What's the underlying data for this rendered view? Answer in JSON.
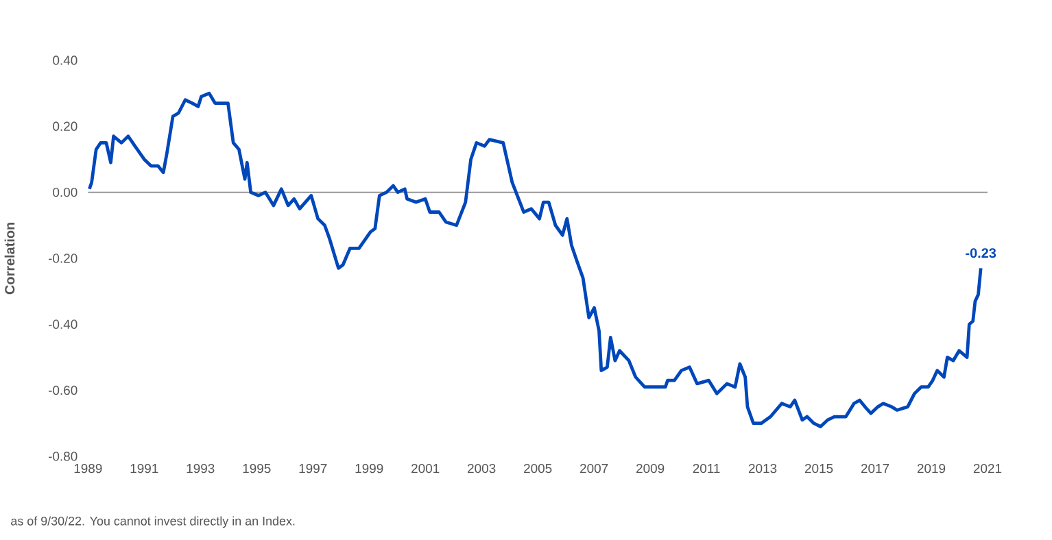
{
  "chart_data": {
    "type": "line",
    "ylabel": "Correlation",
    "x": [
      1989.05,
      1989.13,
      1989.29,
      1989.45,
      1989.65,
      1989.81,
      1989.91,
      1990.19,
      1990.43,
      1990.67,
      1991.0,
      1991.24,
      1991.49,
      1991.68,
      1991.81,
      1992.02,
      1992.22,
      1992.46,
      1992.71,
      1992.92,
      1993.03,
      1993.31,
      1993.52,
      1993.76,
      1993.98,
      1994.17,
      1994.37,
      1994.58,
      1994.66,
      1994.79,
      1995.07,
      1995.31,
      1995.6,
      1995.88,
      1996.12,
      1996.33,
      1996.53,
      1996.94,
      1997.18,
      1997.42,
      1997.59,
      1997.91,
      1998.07,
      1998.32,
      1998.64,
      1999.05,
      1999.21,
      1999.37,
      1999.62,
      1999.86,
      2000.02,
      2000.27,
      2000.35,
      2000.67,
      2001.0,
      2001.16,
      2001.49,
      2001.73,
      2002.11,
      2002.43,
      2002.62,
      2002.82,
      2003.11,
      2003.28,
      2003.77,
      2004.09,
      2004.5,
      2004.77,
      2005.06,
      2005.2,
      2005.39,
      2005.63,
      2005.88,
      2006.04,
      2006.2,
      2006.4,
      2006.61,
      2006.82,
      2007.01,
      2007.18,
      2007.26,
      2007.47,
      2007.59,
      2007.75,
      2007.91,
      2008.24,
      2008.48,
      2008.8,
      2009.13,
      2009.54,
      2009.62,
      2009.86,
      2010.11,
      2010.4,
      2010.67,
      2011.08,
      2011.37,
      2011.73,
      2012.02,
      2012.19,
      2012.38,
      2012.46,
      2012.67,
      2012.95,
      2013.28,
      2013.68,
      2013.98,
      2014.14,
      2014.41,
      2014.58,
      2014.82,
      2015.06,
      2015.31,
      2015.55,
      2015.96,
      2016.25,
      2016.45,
      2016.64,
      2016.85,
      2017.1,
      2017.29,
      2017.59,
      2017.78,
      2018.16,
      2018.4,
      2018.64,
      2018.89,
      2019.05,
      2019.21,
      2019.45,
      2019.57,
      2019.78,
      2019.99,
      2020.27,
      2020.35,
      2020.48,
      2020.56,
      2020.67,
      2020.76
    ],
    "series": [
      {
        "color": "#0047bb",
        "values": [
          0.01,
          0.03,
          0.13,
          0.15,
          0.15,
          0.09,
          0.17,
          0.15,
          0.17,
          0.14,
          0.1,
          0.08,
          0.08,
          0.06,
          0.12,
          0.23,
          0.24,
          0.28,
          0.27,
          0.26,
          0.29,
          0.3,
          0.27,
          0.27,
          0.27,
          0.15,
          0.13,
          0.04,
          0.09,
          0.0,
          -0.01,
          0.0,
          -0.04,
          0.01,
          -0.04,
          -0.02,
          -0.05,
          -0.01,
          -0.08,
          -0.1,
          -0.14,
          -0.23,
          -0.22,
          -0.17,
          -0.17,
          -0.12,
          -0.11,
          -0.01,
          0.0,
          0.02,
          0.0,
          0.01,
          -0.02,
          -0.03,
          -0.02,
          -0.06,
          -0.06,
          -0.09,
          -0.1,
          -0.03,
          0.1,
          0.15,
          0.14,
          0.16,
          0.15,
          0.03,
          -0.06,
          -0.05,
          -0.08,
          -0.03,
          -0.03,
          -0.1,
          -0.13,
          -0.08,
          -0.16,
          -0.21,
          -0.26,
          -0.38,
          -0.35,
          -0.42,
          -0.54,
          -0.53,
          -0.44,
          -0.51,
          -0.48,
          -0.51,
          -0.56,
          -0.59,
          -0.59,
          -0.59,
          -0.57,
          -0.57,
          -0.54,
          -0.53,
          -0.58,
          -0.57,
          -0.61,
          -0.58,
          -0.59,
          -0.52,
          -0.56,
          -0.65,
          -0.7,
          -0.7,
          -0.68,
          -0.64,
          -0.65,
          -0.63,
          -0.69,
          -0.68,
          -0.7,
          -0.71,
          -0.69,
          -0.68,
          -0.68,
          -0.64,
          -0.63,
          -0.65,
          -0.67,
          -0.65,
          -0.64,
          -0.65,
          -0.66,
          -0.65,
          -0.61,
          -0.59,
          -0.59,
          -0.57,
          -0.54,
          -0.56,
          -0.5,
          -0.51,
          -0.48,
          -0.5,
          -0.4,
          -0.39,
          -0.33,
          -0.31,
          -0.23
        ]
      }
    ],
    "xlim": [
      1989,
      2021
    ],
    "ylim": [
      -0.8,
      0.4
    ],
    "xticks": [
      1989,
      1991,
      1993,
      1995,
      1997,
      1999,
      2001,
      2003,
      2005,
      2007,
      2009,
      2011,
      2013,
      2015,
      2017,
      2019,
      2021
    ],
    "yticks": [
      {
        "value": -0.8,
        "label": "-0.80"
      },
      {
        "value": -0.6,
        "label": "-0.60"
      },
      {
        "value": -0.4,
        "label": "-0.40"
      },
      {
        "value": -0.2,
        "label": "-0.20"
      },
      {
        "value": 0,
        "label": "0.00"
      },
      {
        "value": 0.2,
        "label": "0.20"
      },
      {
        "value": 0.4,
        "label": "0.40"
      }
    ],
    "ref_lines": [
      {
        "axis": "y",
        "value": 0,
        "color": "#8c8c8c"
      }
    ],
    "annotations": [
      {
        "text": "-0.23",
        "x": 2020.76,
        "y": -0.23
      },
      "as of 9/30/22. You cannot invest directly in an Index."
    ],
    "grid": false,
    "marker": "none",
    "line_style": "solid"
  }
}
